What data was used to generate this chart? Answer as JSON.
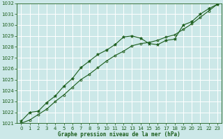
{
  "title": "Graphe pression niveau de la mer (hPa)",
  "bg_color": "#cce8e8",
  "grid_color": "#ffffff",
  "line_color": "#1a5c1a",
  "marker_color": "#1a5c1a",
  "xlim": [
    -0.5,
    23.5
  ],
  "ylim": [
    1021,
    1032
  ],
  "xticks": [
    0,
    1,
    2,
    3,
    4,
    5,
    6,
    7,
    8,
    9,
    10,
    11,
    12,
    13,
    14,
    15,
    16,
    17,
    18,
    19,
    20,
    21,
    22,
    23
  ],
  "yticks": [
    1021,
    1022,
    1023,
    1024,
    1025,
    1026,
    1027,
    1028,
    1029,
    1030,
    1031,
    1032
  ],
  "series1_x": [
    0,
    1,
    2,
    3,
    4,
    5,
    6,
    7,
    8,
    9,
    10,
    11,
    12,
    13,
    14,
    15,
    16,
    17,
    18,
    19,
    20,
    21,
    22,
    23
  ],
  "series1_y": [
    1021.2,
    1022.0,
    1022.1,
    1022.9,
    1023.5,
    1024.4,
    1025.1,
    1026.1,
    1026.7,
    1027.3,
    1027.7,
    1028.2,
    1028.9,
    1029.0,
    1028.8,
    1028.3,
    1028.2,
    1028.6,
    1028.7,
    1030.0,
    1030.3,
    1031.0,
    1031.5,
    1031.9
  ],
  "series2_x": [
    0,
    1,
    2,
    3,
    4,
    5,
    6,
    7,
    8,
    9,
    10,
    11,
    12,
    13,
    14,
    15,
    16,
    17,
    18,
    19,
    20,
    21,
    22,
    23
  ],
  "series2_y": [
    1021.0,
    1021.3,
    1021.8,
    1022.3,
    1023.0,
    1023.6,
    1024.3,
    1025.0,
    1025.5,
    1026.1,
    1026.7,
    1027.2,
    1027.6,
    1028.1,
    1028.3,
    1028.4,
    1028.6,
    1028.9,
    1029.1,
    1029.6,
    1030.1,
    1030.7,
    1031.3,
    1031.9
  ],
  "xlabel_fontsize": 5.5,
  "tick_fontsize": 5,
  "lw": 0.8
}
